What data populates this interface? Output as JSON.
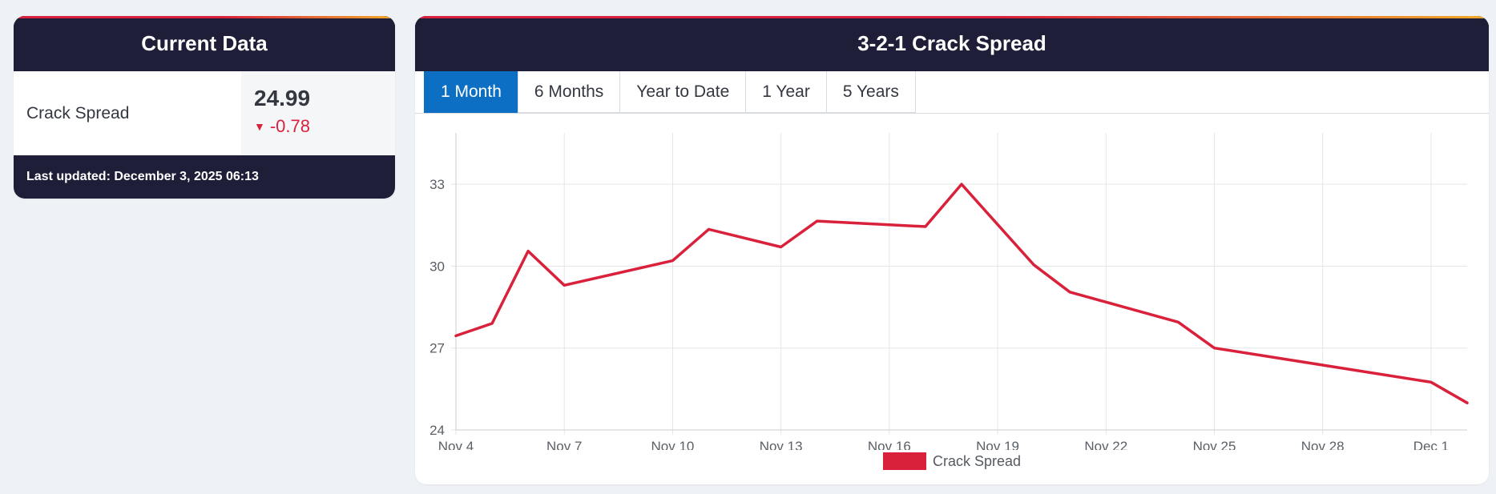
{
  "current": {
    "title": "Current Data",
    "label": "Crack Spread",
    "value": "24.99",
    "change_arrow": "▼",
    "change": "-0.78",
    "last_updated": "Last updated: December 3, 2025 06:13"
  },
  "chart_panel": {
    "title": "3-2-1 Crack Spread",
    "tabs": [
      "1 Month",
      "6 Months",
      "Year to Date",
      "1 Year",
      "5 Years"
    ],
    "active_tab": "1 Month"
  },
  "colors": {
    "series": "#d9213b",
    "header_bg": "#1e1e38",
    "tab_active": "#0d6fc4",
    "change_negative": "#d9213b"
  },
  "chart_data": {
    "type": "line",
    "title": "",
    "xlabel": "",
    "ylabel": "",
    "ylim": [
      24,
      34
    ],
    "y_ticks": [
      24,
      27,
      30,
      33
    ],
    "x_tick_labels": [
      "Nov 4",
      "Nov 7",
      "Nov 10",
      "Nov 13",
      "Nov 16",
      "Nov 19",
      "Nov 22",
      "Nov 25",
      "Nov 28",
      "Dec 1"
    ],
    "x_tick_days": [
      4,
      7,
      10,
      13,
      16,
      19,
      22,
      25,
      28,
      31
    ],
    "x_range_days": [
      4,
      32
    ],
    "grid": true,
    "legend": "bottom",
    "series": [
      {
        "name": "Crack Spread",
        "points": [
          {
            "x": "Nov 4",
            "y": 27.45
          },
          {
            "x": "Nov 5",
            "y": 27.9
          },
          {
            "x": "Nov 6",
            "y": 30.55
          },
          {
            "x": "Nov 7",
            "y": 29.3
          },
          {
            "x": "Nov 10",
            "y": 30.2
          },
          {
            "x": "Nov 11",
            "y": 31.35
          },
          {
            "x": "Nov 13",
            "y": 30.7
          },
          {
            "x": "Nov 14",
            "y": 31.65
          },
          {
            "x": "Nov 17",
            "y": 31.45
          },
          {
            "x": "Nov 18",
            "y": 33.0
          },
          {
            "x": "Nov 20",
            "y": 30.05
          },
          {
            "x": "Nov 21",
            "y": 29.05
          },
          {
            "x": "Nov 24",
            "y": 27.95
          },
          {
            "x": "Nov 25",
            "y": 27.0
          },
          {
            "x": "Dec 1",
            "y": 25.75
          },
          {
            "x": "Dec 2",
            "y": 24.99
          }
        ]
      }
    ]
  }
}
